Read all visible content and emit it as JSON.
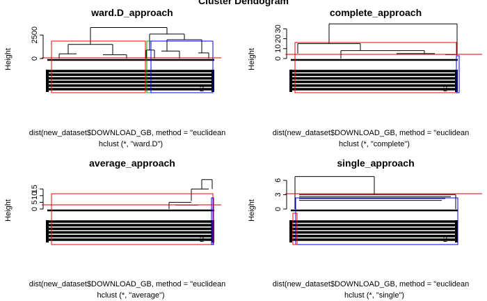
{
  "chart_data": {
    "type": "dendrogram",
    "super_title": "Cluster Dendogram",
    "panels": [
      {
        "title": "ward.D_approach",
        "ylabel": "Height",
        "xlabel": "dist(new_dataset$DOWNLOAD_GB, method = \"euclidean",
        "sublabel": "hclust (*, \"ward.D\")",
        "yticks": [
          0,
          2500
        ],
        "ylim": [
          0,
          4000
        ],
        "cut_height": 0,
        "root_height": 3300,
        "leaf_label": "2",
        "cluster_colors": [
          "#ff0000",
          "#00a000",
          "#0000ff"
        ]
      },
      {
        "title": "complete_approach",
        "ylabel": "Height",
        "xlabel": "dist(new_dataset$DOWNLOAD_GB, method = \"euclidean",
        "sublabel": "hclust (*, \"complete\")",
        "yticks": [
          0,
          10,
          20,
          30
        ],
        "ylim": [
          0,
          38
        ],
        "cut_height": 3,
        "root_height": 35,
        "leaf_label": "2",
        "cluster_colors": [
          "#ff0000",
          "#0000ff"
        ]
      },
      {
        "title": "average_approach",
        "ylabel": "Height",
        "xlabel": "dist(new_dataset$DOWNLOAD_GB, method = \"euclidean",
        "sublabel": "hclust (*, \"average\")",
        "yticks": [
          0,
          5,
          10,
          15
        ],
        "ylim": [
          0,
          25
        ],
        "cut_height": 3,
        "root_height": 22,
        "leaf_label": "2",
        "cluster_colors": [
          "#ff0000",
          "#0000ff"
        ]
      },
      {
        "title": "single_approach",
        "ylabel": "Height",
        "xlabel": "dist(new_dataset$DOWNLOAD_GB, method = \"euclidean",
        "sublabel": "hclust (*, \"single\")",
        "yticks": [
          0,
          3,
          6
        ],
        "ylim": [
          0,
          7
        ],
        "cut_height": 3,
        "root_height": 6.8,
        "leaf_label": "2",
        "cluster_colors": [
          "#ff0000",
          "#0000ff"
        ]
      }
    ]
  }
}
